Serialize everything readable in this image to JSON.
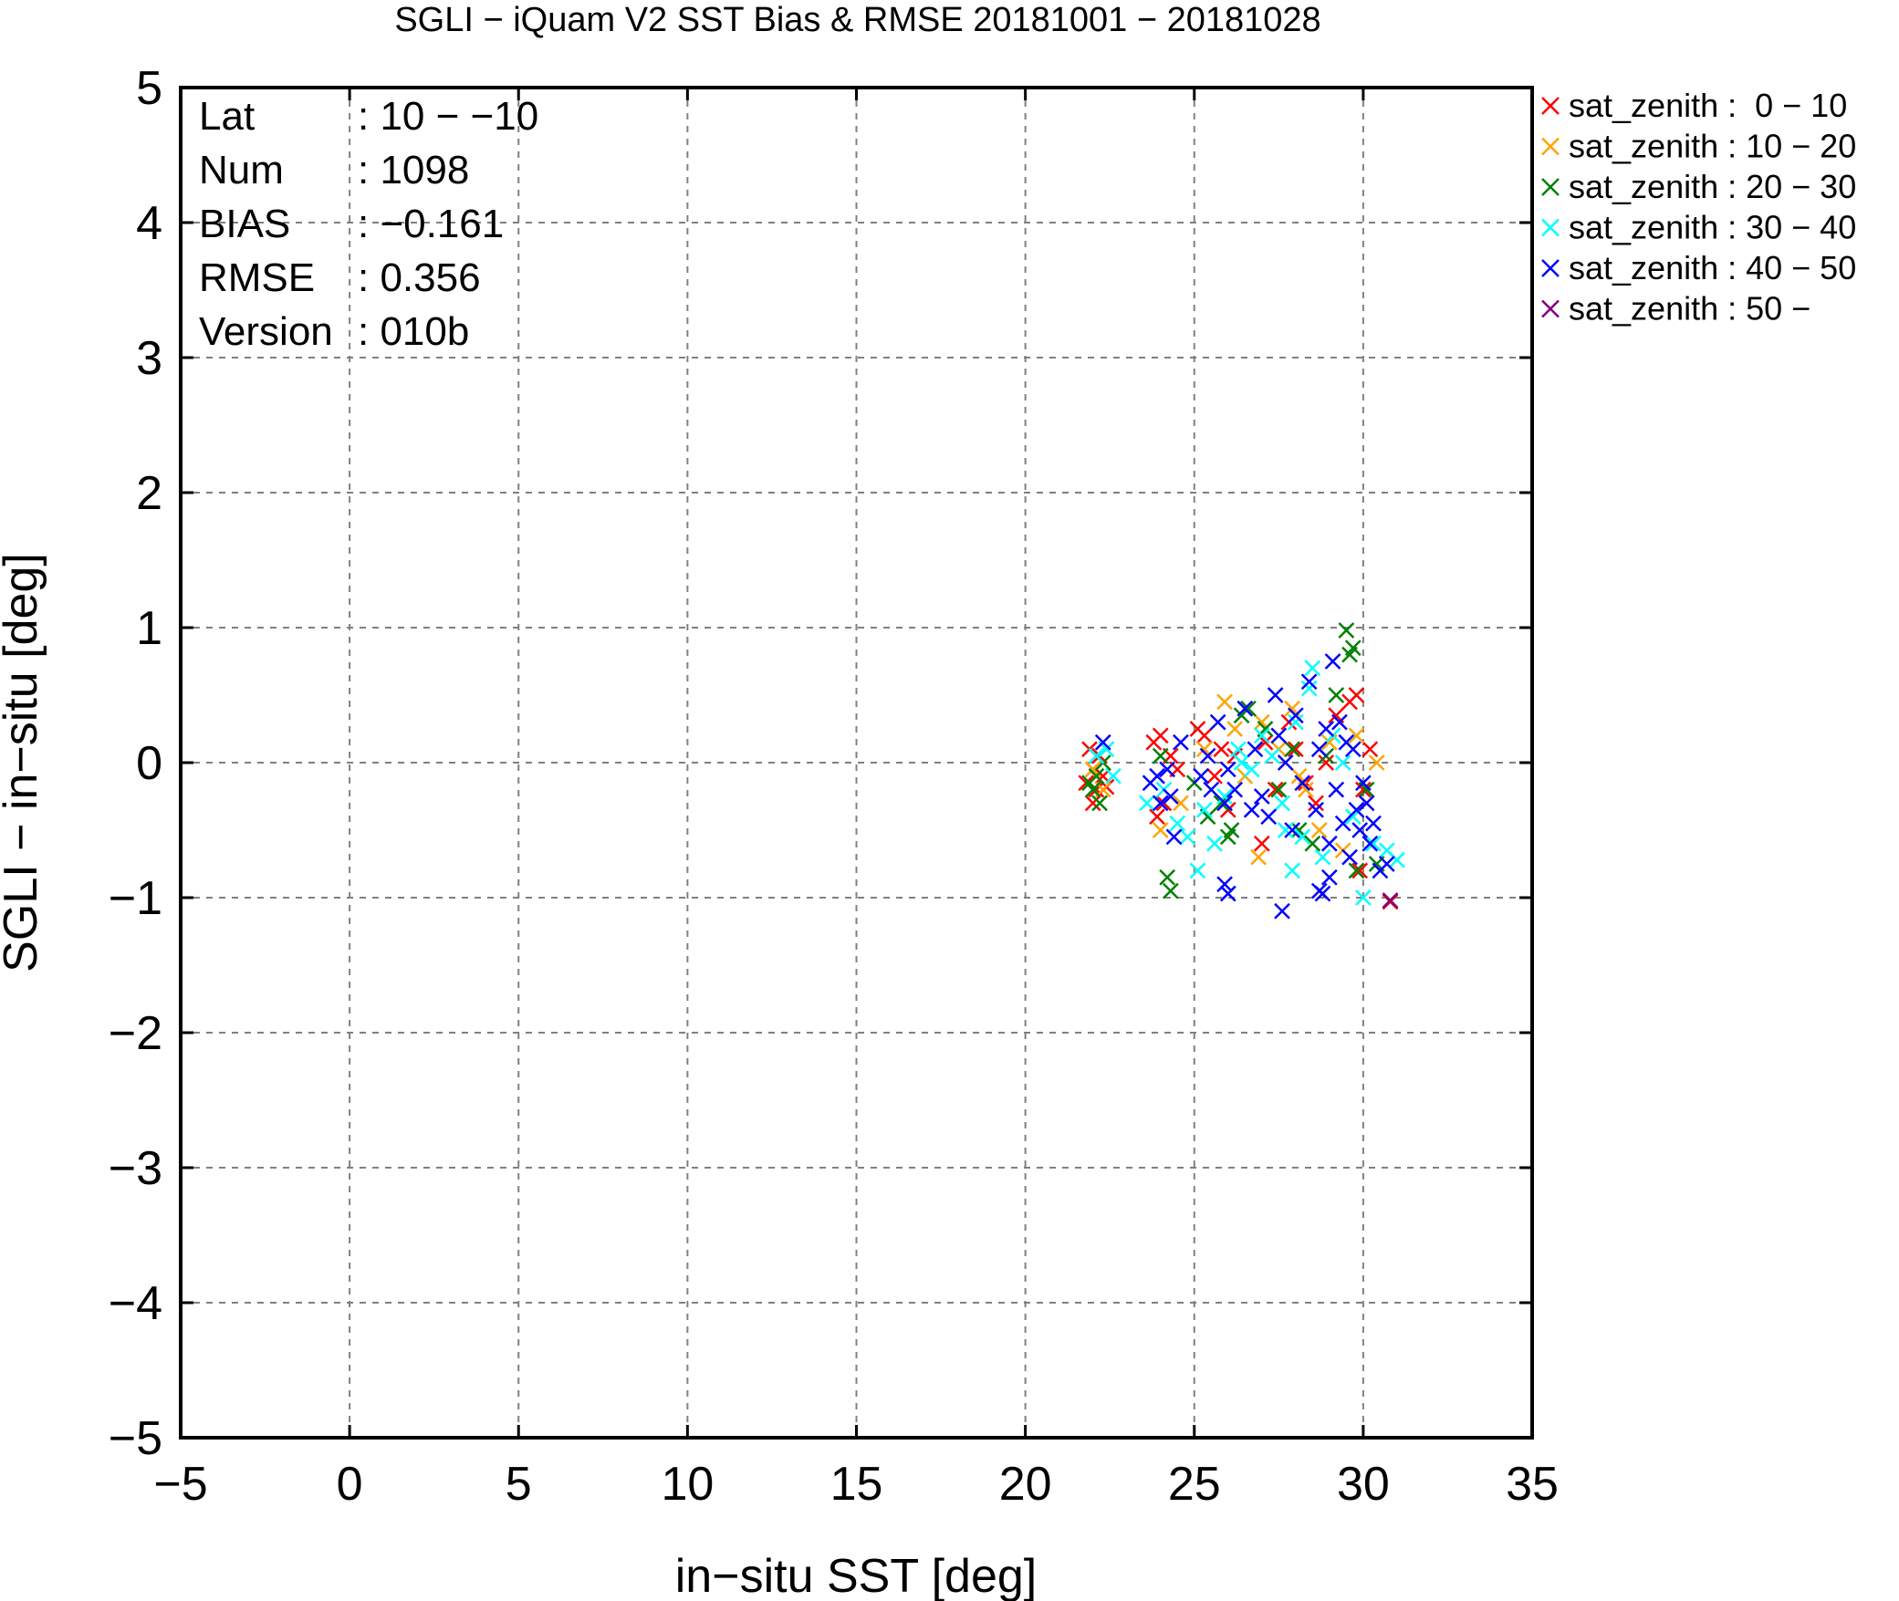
{
  "chart_data": {
    "type": "scatter",
    "title": "SGLI − iQuam V2 SST Bias & RMSE 20181001 − 20181028",
    "xlabel": "in−situ SST [deg]",
    "ylabel": "SGLI − in−situ [deg]",
    "xlim": [
      -5,
      35
    ],
    "ylim": [
      -5,
      5
    ],
    "x_ticks": [
      "−5",
      "0",
      "5",
      "10",
      "15",
      "20",
      "25",
      "30",
      "35"
    ],
    "x_tick_values": [
      -5,
      0,
      5,
      10,
      15,
      20,
      25,
      30,
      35
    ],
    "y_ticks": [
      "5",
      "4",
      "3",
      "2",
      "1",
      "0",
      "−1",
      "−2",
      "−3",
      "−4",
      "−5"
    ],
    "y_tick_values": [
      5,
      4,
      3,
      2,
      1,
      0,
      -1,
      -2,
      -3,
      -4,
      -5
    ],
    "grid": true,
    "legend_position": "outside-right-top",
    "marker": "x",
    "stats": [
      {
        "key": "Lat",
        "value": ": 10 − −10"
      },
      {
        "key": "Num",
        "value": ": 1098"
      },
      {
        "key": "BIAS",
        "value": ": −0.161"
      },
      {
        "key": "RMSE",
        "value": ": 0.356"
      },
      {
        "key": "Version",
        "value": ": 010b"
      }
    ],
    "series": [
      {
        "name": "sat_zenith :  0 − 10",
        "color": "#ff0000",
        "x": [
          21.8,
          21.9,
          22.0,
          22.1,
          22.2,
          22.3,
          22.0,
          22.4,
          23.8,
          23.9,
          24.0,
          24.1,
          24.3,
          25.1,
          25.3,
          25.6,
          25.8,
          26.0,
          26.2,
          27.1,
          27.4,
          27.8,
          28.0,
          28.3,
          28.6,
          28.9,
          29.2,
          29.6,
          29.8,
          30.0,
          30.2,
          30.8,
          24.5,
          27.0,
          29.9
        ],
        "y": [
          -0.15,
          0.1,
          -0.3,
          -0.2,
          0.05,
          -0.1,
          -0.05,
          -0.18,
          0.15,
          -0.4,
          0.2,
          -0.3,
          0.05,
          0.25,
          0.2,
          -0.1,
          0.1,
          -0.35,
          0.05,
          0.15,
          -0.2,
          0.3,
          0.1,
          -0.15,
          -0.3,
          0.0,
          0.35,
          0.45,
          0.5,
          -0.2,
          0.1,
          -1.03,
          -0.05,
          -0.6,
          -0.8
        ]
      },
      {
        "name": "sat_zenith : 10 − 20",
        "color": "#ffa500",
        "x": [
          22.0,
          22.3,
          24.0,
          24.6,
          25.3,
          25.9,
          26.2,
          26.5,
          27.0,
          27.5,
          27.9,
          28.3,
          28.7,
          29.0,
          29.4,
          29.8,
          30.1,
          30.4,
          28.1,
          26.9
        ],
        "y": [
          -0.05,
          -0.2,
          -0.5,
          -0.3,
          0.1,
          0.45,
          0.25,
          -0.1,
          0.3,
          0.1,
          0.4,
          -0.2,
          -0.5,
          0.15,
          -0.65,
          0.2,
          -0.3,
          0.0,
          -0.1,
          -0.7
        ]
      },
      {
        "name": "sat_zenith : 20 − 30",
        "color": "#008000",
        "x": [
          22.0,
          22.1,
          22.2,
          22.3,
          21.9,
          24.2,
          24.3,
          24.0,
          25.4,
          25.8,
          26.1,
          26.4,
          26.6,
          27.1,
          27.5,
          27.9,
          28.1,
          28.5,
          28.9,
          29.2,
          29.5,
          29.6,
          29.7,
          29.8,
          30.1,
          30.4,
          25.0,
          26.0
        ],
        "y": [
          -0.2,
          -0.1,
          -0.3,
          0.0,
          -0.15,
          -0.85,
          -0.95,
          0.05,
          -0.4,
          -0.3,
          -0.5,
          0.35,
          0.4,
          0.25,
          -0.2,
          0.1,
          -0.5,
          -0.6,
          0.05,
          0.5,
          0.98,
          0.8,
          0.85,
          -0.8,
          -0.2,
          -0.75,
          -0.15,
          -0.55
        ]
      },
      {
        "name": "sat_zenith : 30 − 40",
        "color": "#00ffff",
        "x": [
          22.1,
          22.4,
          22.6,
          23.6,
          24.1,
          24.5,
          24.8,
          25.1,
          25.3,
          25.6,
          25.9,
          26.3,
          26.7,
          27.0,
          27.3,
          27.6,
          27.9,
          28.2,
          28.5,
          28.8,
          29.1,
          29.4,
          29.7,
          30.0,
          30.3,
          30.7,
          31.0,
          28.4,
          26.4,
          27.7,
          28.0,
          29.5
        ],
        "y": [
          0.05,
          0.1,
          -0.1,
          -0.3,
          -0.2,
          -0.45,
          -0.55,
          -0.8,
          -0.35,
          -0.6,
          -0.25,
          0.1,
          -0.05,
          0.2,
          0.05,
          -0.3,
          -0.8,
          -0.55,
          0.7,
          -0.7,
          0.2,
          0.0,
          -0.4,
          -1.0,
          -0.6,
          -0.65,
          -0.72,
          0.55,
          0.0,
          -0.5,
          0.3,
          0.15
        ]
      },
      {
        "name": "sat_zenith : 40 − 50",
        "color": "#0000ff",
        "x": [
          22.3,
          23.7,
          23.9,
          24.0,
          24.2,
          24.4,
          24.6,
          25.2,
          25.4,
          25.5,
          25.7,
          25.9,
          26.0,
          26.2,
          26.5,
          26.8,
          27.0,
          27.2,
          27.4,
          27.5,
          27.7,
          27.9,
          28.0,
          28.2,
          28.4,
          28.6,
          28.7,
          28.8,
          29.0,
          29.1,
          29.2,
          29.3,
          29.4,
          29.5,
          29.6,
          29.7,
          29.8,
          29.9,
          30.0,
          30.1,
          30.2,
          30.3,
          30.5,
          25.9,
          26.0,
          27.6,
          28.7,
          24.3,
          26.7,
          28.9,
          29.0,
          30.7
        ],
        "y": [
          0.15,
          -0.15,
          -0.1,
          -0.3,
          -0.05,
          -0.55,
          0.15,
          -0.1,
          0.05,
          -0.2,
          0.3,
          -0.3,
          -0.05,
          -0.2,
          0.4,
          0.1,
          -0.25,
          -0.4,
          0.5,
          0.2,
          0.0,
          -0.5,
          0.35,
          -0.15,
          0.6,
          -0.35,
          0.1,
          -0.97,
          -0.6,
          0.75,
          -0.2,
          0.3,
          -0.45,
          0.15,
          -0.7,
          0.1,
          -0.35,
          -0.5,
          -0.15,
          -0.3,
          -0.6,
          -0.45,
          -0.8,
          -0.9,
          -0.97,
          -1.1,
          -0.95,
          -0.25,
          -0.35,
          0.25,
          -0.85,
          -0.75
        ]
      },
      {
        "name": "sat_zenith : 50 −",
        "color": "#800080",
        "x": [
          30.8
        ],
        "y": [
          -1.02
        ]
      }
    ]
  }
}
